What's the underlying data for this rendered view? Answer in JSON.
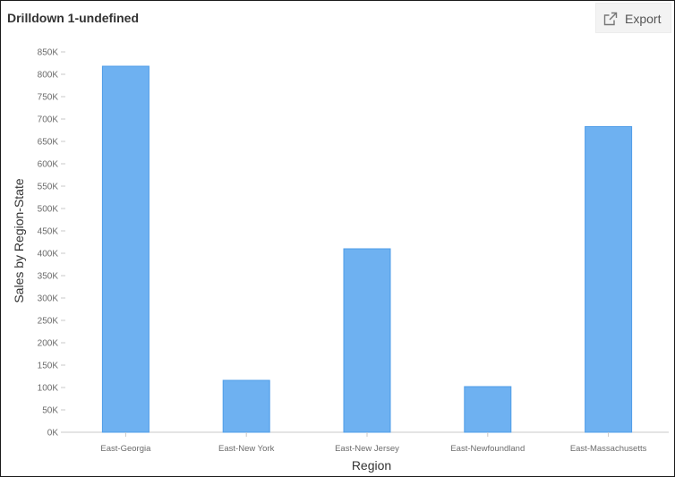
{
  "header": {
    "title": "Drilldown 1-undefined",
    "export_label": "Export",
    "export_icon": "external-link-icon"
  },
  "colors": {
    "bar": "#6eb1f1",
    "bar_stroke": "#4f9de8"
  },
  "chart_data": {
    "type": "bar",
    "categories": [
      "East-Georgia",
      "East-New York",
      "East-New Jersey",
      "East-Newfoundland",
      "East-Massachusetts"
    ],
    "series": [
      {
        "values": [
          818000,
          116000,
          410000,
          102000,
          683000
        ]
      }
    ],
    "xlabel": "Region",
    "ylabel": "Sales by Region-State",
    "ylim": [
      0,
      850000
    ],
    "yticks": [
      "0K",
      "50K",
      "100K",
      "150K",
      "200K",
      "250K",
      "300K",
      "350K",
      "400K",
      "450K",
      "500K",
      "550K",
      "600K",
      "650K",
      "700K",
      "750K",
      "800K",
      "850K"
    ],
    "ytick_values": [
      0,
      50000,
      100000,
      150000,
      200000,
      250000,
      300000,
      350000,
      400000,
      450000,
      500000,
      550000,
      600000,
      650000,
      700000,
      750000,
      800000,
      850000
    ],
    "grid": false,
    "legend": "none"
  }
}
